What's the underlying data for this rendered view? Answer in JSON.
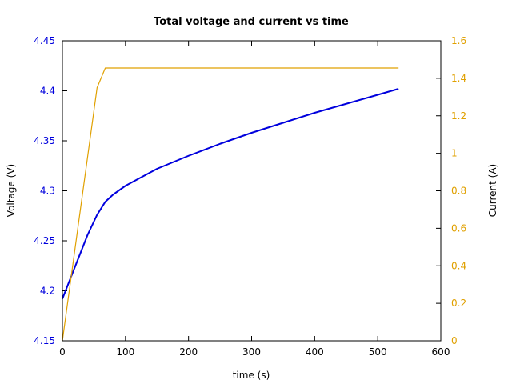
{
  "chart_data": {
    "type": "line",
    "title": "Total voltage and current vs time",
    "xlabel": "time (s)",
    "ylabel": "Voltage (V)",
    "y2label": "Current (A)",
    "xlim": [
      0,
      600
    ],
    "ylim": [
      4.15,
      4.45
    ],
    "y2lim": [
      0,
      1.6
    ],
    "x_ticks": [
      "0",
      "100",
      "200",
      "300",
      "400",
      "500",
      "600"
    ],
    "y_ticks": [
      "4.15",
      "4.2",
      "4.25",
      "4.3",
      "4.35",
      "4.4",
      "4.45"
    ],
    "y2_ticks": [
      "0",
      "0.2",
      "0.4",
      "0.6",
      "0.8",
      "1",
      "1.2",
      "1.4",
      "1.6"
    ],
    "grid": false,
    "colors": {
      "voltage": "#0000dd",
      "current": "#e0a000",
      "left_axis_text": "#0000dd",
      "right_axis_text": "#e0a000"
    },
    "series": [
      {
        "axis": "left",
        "x": [
          0,
          10,
          20,
          30,
          40,
          55,
          68,
          80,
          100,
          150,
          200,
          250,
          300,
          350,
          400,
          450,
          500,
          533
        ],
        "y": [
          4.192,
          4.208,
          4.224,
          4.24,
          4.256,
          4.276,
          4.289,
          4.296,
          4.305,
          4.322,
          4.335,
          4.347,
          4.358,
          4.368,
          4.378,
          4.387,
          4.396,
          4.402
        ]
      },
      {
        "axis": "right",
        "x": [
          0,
          55,
          68,
          533
        ],
        "y": [
          0,
          1.35,
          1.455,
          1.455
        ]
      }
    ]
  }
}
